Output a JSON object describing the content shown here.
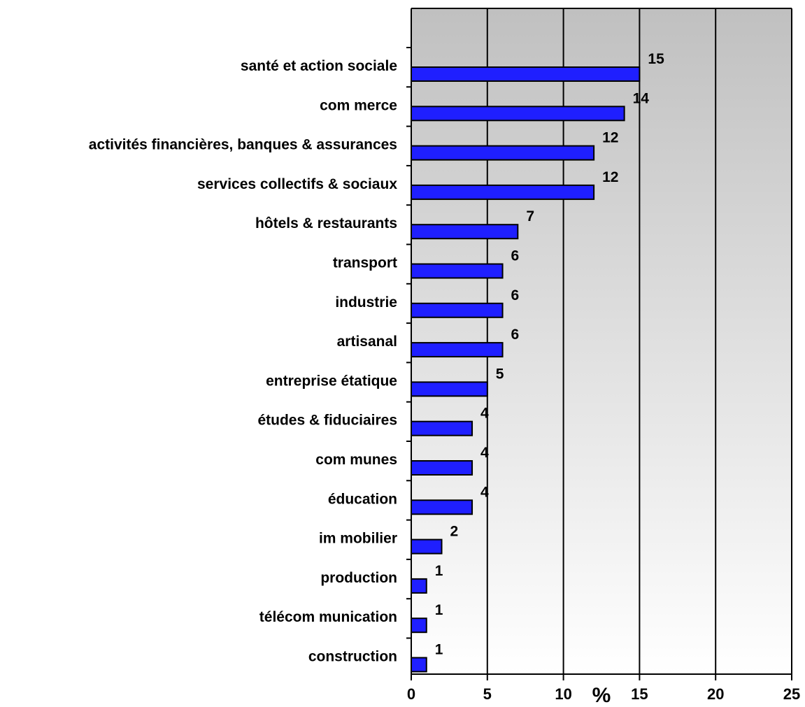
{
  "chart_data": {
    "type": "bar",
    "orientation": "horizontal",
    "categories": [
      "santé et action sociale",
      "com merce",
      "activités financières, banques & assurances",
      "services collectifs & sociaux",
      "hôtels & restaurants",
      "transport",
      "industrie",
      "artisanal",
      "entreprise étatique",
      "études & fiduciaires",
      "com munes",
      "éducation",
      "im mobilier",
      "production",
      "télécom munication",
      "construction"
    ],
    "values": [
      15,
      14,
      12,
      12,
      7,
      6,
      6,
      6,
      5,
      4,
      4,
      4,
      2,
      1,
      1,
      1
    ],
    "data_labels": [
      "15",
      "14",
      "12",
      "12",
      "7",
      "6",
      "6",
      "6",
      "5",
      "4",
      "4",
      "4",
      "2",
      "1",
      "1",
      "1"
    ],
    "xlim": [
      0,
      25
    ],
    "x_ticks": [
      0,
      5,
      10,
      15,
      20,
      25
    ],
    "x_tick_labels": [
      "0",
      "5",
      "10",
      "15",
      "20",
      "25"
    ],
    "xlabel": "%",
    "grid": "vertical",
    "bar_color": "#1f1fff",
    "bar_edge_color": "#000000",
    "plot_background": "gradient from #c0c0c0 (top) to #ffffff (bottom)"
  }
}
